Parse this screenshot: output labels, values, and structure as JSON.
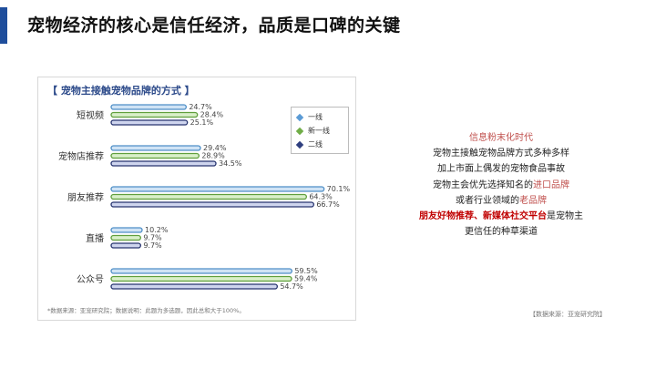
{
  "slide": {
    "title": "宠物经济的核心是信任经济，品质是口碑的关键",
    "source": "【数据来源：亚宠研究院】"
  },
  "colors": {
    "accent": "#1f4e9c",
    "series_tier1": "#5b9bd5",
    "series_newtier1": "#70ad47",
    "series_tier2": "#4a5fa3",
    "highlight_red": "#c00000"
  },
  "chart_data": {
    "type": "bar",
    "orientation": "horizontal",
    "title": "【 宠物主接触宠物品牌的方式 】",
    "note": "*数据来源：亚宠研究院；数据说明：此题为多选题，因此总和大于100%。",
    "categories": [
      "短视频",
      "宠物店推荐",
      "朋友推荐",
      "直播",
      "公众号"
    ],
    "series": [
      {
        "name": "一线",
        "values": [
          24.7,
          29.4,
          70.1,
          10.2,
          59.5
        ]
      },
      {
        "name": "新一线",
        "values": [
          28.4,
          28.9,
          64.3,
          9.7,
          59.4
        ]
      },
      {
        "name": "二线",
        "values": [
          25.1,
          34.5,
          66.7,
          9.7,
          54.7
        ]
      }
    ],
    "value_suffix": "%",
    "xlim": [
      0,
      75
    ],
    "grid": false,
    "legend_position": "top-right"
  },
  "text_block": {
    "line1": "信息粉末化时代",
    "line2": "宠物主接触宠物品牌方式多种多样",
    "line3": "加上市面上偶发的宠物食品事故",
    "line4_pre": "宠物主会优先选择知名的",
    "line4_hl": "进口品牌",
    "line5_pre": "或者行业领域的",
    "line5_hl": "老品牌",
    "line6_hl1": "朋友好物推荐",
    "line6_sep": "、",
    "line6_hl2": "新媒体社交平台",
    "line6_post": "是宠物主",
    "line7": "更信任的种草渠道"
  }
}
